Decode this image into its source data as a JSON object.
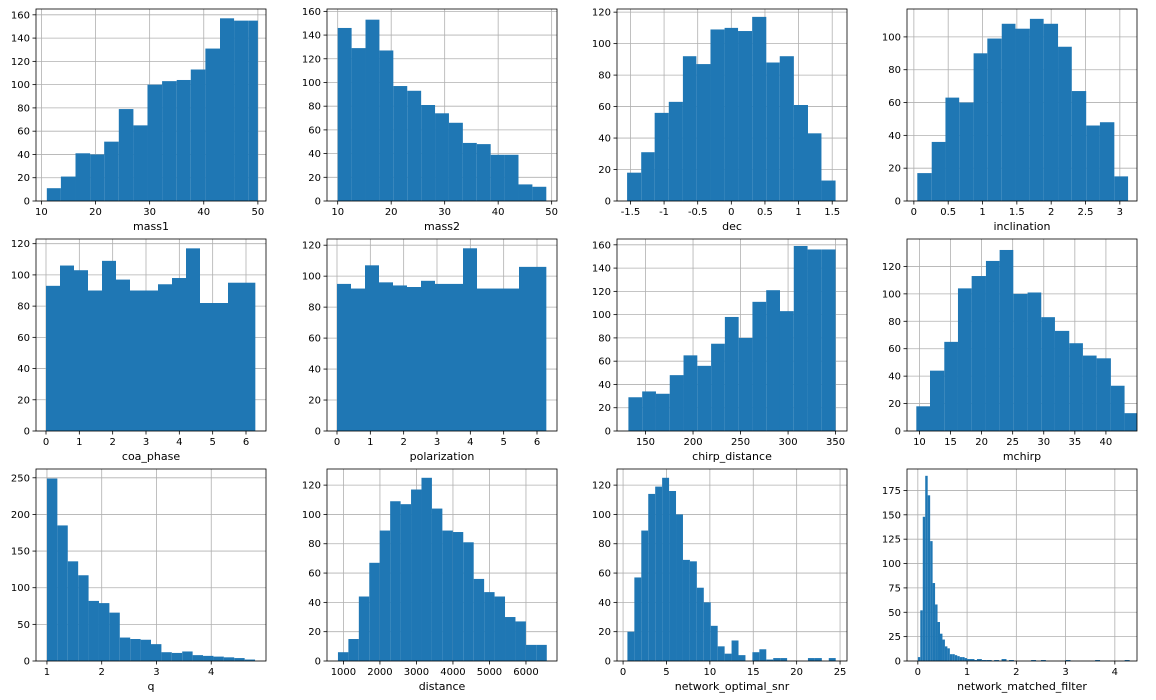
{
  "chart_data": [
    {
      "type": "histogram",
      "xlabel": "mass1",
      "xlim": [
        9,
        51.5
      ],
      "ylim": [
        0,
        165
      ],
      "xticks": [
        10,
        20,
        30,
        40,
        50
      ],
      "yticks": [
        0,
        20,
        40,
        60,
        80,
        100,
        120,
        140,
        160
      ],
      "bins": [
        [
          11.0,
          13.6,
          11
        ],
        [
          13.6,
          16.3,
          21
        ],
        [
          16.3,
          19.0,
          41
        ],
        [
          19.0,
          21.6,
          40
        ],
        [
          21.6,
          24.3,
          51
        ],
        [
          24.3,
          27.0,
          79
        ],
        [
          27.0,
          29.6,
          65
        ],
        [
          29.6,
          32.3,
          100
        ],
        [
          32.3,
          35.0,
          103
        ],
        [
          35.0,
          37.6,
          104
        ],
        [
          37.6,
          40.3,
          113
        ],
        [
          40.3,
          43.0,
          131
        ],
        [
          43.0,
          45.6,
          157
        ],
        [
          45.6,
          48.3,
          155
        ],
        [
          48.3,
          50.0,
          155
        ]
      ]
    },
    {
      "type": "histogram",
      "xlabel": "mass2",
      "xlim": [
        8,
        51
      ],
      "ylim": [
        0,
        162
      ],
      "xticks": [
        10,
        20,
        30,
        40,
        50
      ],
      "yticks": [
        0,
        20,
        40,
        60,
        80,
        100,
        120,
        140,
        160
      ],
      "bins": [
        [
          10.0,
          12.6,
          146
        ],
        [
          12.6,
          15.2,
          129
        ],
        [
          15.2,
          17.8,
          153
        ],
        [
          17.8,
          20.4,
          127
        ],
        [
          20.4,
          23.0,
          97
        ],
        [
          23.0,
          25.6,
          93
        ],
        [
          25.6,
          28.2,
          81
        ],
        [
          28.2,
          30.8,
          74
        ],
        [
          30.8,
          33.4,
          66
        ],
        [
          33.4,
          36.0,
          49
        ],
        [
          36.0,
          38.6,
          48
        ],
        [
          38.6,
          41.2,
          39
        ],
        [
          41.2,
          43.8,
          39
        ],
        [
          43.8,
          46.4,
          14
        ],
        [
          46.4,
          49.0,
          12
        ]
      ]
    },
    {
      "type": "histogram",
      "xlabel": "dec",
      "xlim": [
        -1.7,
        1.72
      ],
      "ylim": [
        0,
        122
      ],
      "xticks": [
        -1.5,
        -1.0,
        -0.5,
        0.0,
        0.5,
        1.0,
        1.5
      ],
      "yticks": [
        0,
        20,
        40,
        60,
        80,
        100,
        120
      ],
      "bins": [
        [
          -1.55,
          -1.34,
          18
        ],
        [
          -1.34,
          -1.14,
          31
        ],
        [
          -1.14,
          -0.93,
          56
        ],
        [
          -0.93,
          -0.72,
          63
        ],
        [
          -0.72,
          -0.52,
          92
        ],
        [
          -0.52,
          -0.31,
          87
        ],
        [
          -0.31,
          -0.1,
          109
        ],
        [
          -0.1,
          0.1,
          110
        ],
        [
          0.1,
          0.31,
          108
        ],
        [
          0.31,
          0.52,
          117
        ],
        [
          0.52,
          0.72,
          88
        ],
        [
          0.72,
          0.93,
          92
        ],
        [
          0.93,
          1.14,
          61
        ],
        [
          1.14,
          1.34,
          43
        ],
        [
          1.34,
          1.55,
          13
        ]
      ]
    },
    {
      "type": "histogram",
      "xlabel": "inclination",
      "xlim": [
        -0.1,
        3.25
      ],
      "ylim": [
        0,
        117
      ],
      "xticks": [
        0.0,
        0.5,
        1.0,
        1.5,
        2.0,
        2.5,
        3.0
      ],
      "yticks": [
        0,
        20,
        40,
        60,
        80,
        100
      ],
      "bins": [
        [
          0.05,
          0.26,
          17
        ],
        [
          0.26,
          0.46,
          36
        ],
        [
          0.46,
          0.66,
          63
        ],
        [
          0.66,
          0.87,
          60
        ],
        [
          0.87,
          1.07,
          90
        ],
        [
          1.07,
          1.28,
          99
        ],
        [
          1.28,
          1.48,
          108
        ],
        [
          1.48,
          1.69,
          105
        ],
        [
          1.69,
          1.89,
          111
        ],
        [
          1.89,
          2.1,
          108
        ],
        [
          2.1,
          2.3,
          94
        ],
        [
          2.3,
          2.51,
          67
        ],
        [
          2.51,
          2.71,
          46
        ],
        [
          2.71,
          2.92,
          48
        ],
        [
          2.92,
          3.12,
          15
        ]
      ]
    },
    {
      "type": "histogram",
      "xlabel": "coa_phase",
      "xlim": [
        -0.3,
        6.6
      ],
      "ylim": [
        0,
        123
      ],
      "xticks": [
        0,
        1,
        2,
        3,
        4,
        5,
        6
      ],
      "yticks": [
        0,
        20,
        40,
        60,
        80,
        100,
        120
      ],
      "bins": [
        [
          0.0,
          0.42,
          93
        ],
        [
          0.42,
          0.84,
          106
        ],
        [
          0.84,
          1.26,
          103
        ],
        [
          1.26,
          1.68,
          90
        ],
        [
          1.68,
          2.1,
          109
        ],
        [
          2.1,
          2.52,
          97
        ],
        [
          2.52,
          2.94,
          90
        ],
        [
          2.94,
          3.36,
          90
        ],
        [
          3.36,
          3.78,
          94
        ],
        [
          3.78,
          4.2,
          98
        ],
        [
          4.2,
          4.62,
          117
        ],
        [
          4.62,
          5.04,
          82
        ],
        [
          5.04,
          5.46,
          82
        ],
        [
          5.46,
          5.88,
          95
        ],
        [
          5.88,
          6.28,
          95
        ]
      ]
    },
    {
      "type": "histogram",
      "xlabel": "polarization",
      "xlim": [
        -0.3,
        6.6
      ],
      "ylim": [
        0,
        124
      ],
      "xticks": [
        0,
        1,
        2,
        3,
        4,
        5,
        6
      ],
      "yticks": [
        0,
        20,
        40,
        60,
        80,
        100,
        120
      ],
      "bins": [
        [
          0.0,
          0.42,
          95
        ],
        [
          0.42,
          0.84,
          92
        ],
        [
          0.84,
          1.26,
          107
        ],
        [
          1.26,
          1.68,
          96
        ],
        [
          1.68,
          2.1,
          94
        ],
        [
          2.1,
          2.52,
          93
        ],
        [
          2.52,
          2.94,
          97
        ],
        [
          2.94,
          3.36,
          95
        ],
        [
          3.36,
          3.78,
          95
        ],
        [
          3.78,
          4.2,
          118
        ],
        [
          4.2,
          4.62,
          92
        ],
        [
          4.62,
          5.04,
          92
        ],
        [
          5.04,
          5.46,
          92
        ],
        [
          5.46,
          5.88,
          106
        ],
        [
          5.88,
          6.28,
          106
        ]
      ]
    },
    {
      "type": "histogram",
      "xlabel": "chirp_distance",
      "xlim": [
        120,
        362
      ],
      "ylim": [
        0,
        165
      ],
      "xticks": [
        150,
        200,
        250,
        300,
        350
      ],
      "yticks": [
        0,
        20,
        40,
        60,
        80,
        100,
        120,
        140,
        160
      ],
      "bins": [
        [
          132,
          146.5,
          29
        ],
        [
          146.5,
          161,
          34
        ],
        [
          161,
          175.5,
          32
        ],
        [
          175.5,
          190,
          48
        ],
        [
          190,
          204.5,
          65
        ],
        [
          204.5,
          219,
          56
        ],
        [
          219,
          233.5,
          75
        ],
        [
          233.5,
          248,
          98
        ],
        [
          248,
          262.5,
          80
        ],
        [
          262.5,
          277,
          111
        ],
        [
          277,
          291.5,
          121
        ],
        [
          291.5,
          306,
          103
        ],
        [
          306,
          320.5,
          159
        ],
        [
          320.5,
          335,
          156
        ],
        [
          335,
          350,
          156
        ]
      ]
    },
    {
      "type": "histogram",
      "xlabel": "mchirp",
      "xlim": [
        8,
        45
      ],
      "ylim": [
        0,
        140
      ],
      "xticks": [
        10,
        15,
        20,
        25,
        30,
        35,
        40
      ],
      "yticks": [
        0,
        20,
        40,
        60,
        80,
        100,
        120
      ],
      "bins": [
        [
          9.5,
          11.7,
          18
        ],
        [
          11.7,
          14.0,
          44
        ],
        [
          14.0,
          16.2,
          65
        ],
        [
          16.2,
          18.4,
          104
        ],
        [
          18.4,
          20.7,
          113
        ],
        [
          20.7,
          22.9,
          124
        ],
        [
          22.9,
          25.1,
          132
        ],
        [
          25.1,
          27.4,
          100
        ],
        [
          27.4,
          29.6,
          101
        ],
        [
          29.6,
          31.8,
          83
        ],
        [
          31.8,
          34.1,
          73
        ],
        [
          34.1,
          36.3,
          64
        ],
        [
          36.3,
          38.5,
          55
        ],
        [
          38.5,
          40.8,
          53
        ],
        [
          40.8,
          43.0,
          33
        ],
        [
          43.0,
          45.0,
          13
        ]
      ]
    },
    {
      "type": "histogram",
      "xlabel": "q",
      "xlim": [
        0.8,
        5.0
      ],
      "ylim": [
        0,
        262
      ],
      "xticks": [
        1,
        2,
        3,
        4
      ],
      "yticks": [
        0,
        50,
        100,
        150,
        200,
        250
      ],
      "bins": [
        [
          1.0,
          1.19,
          249
        ],
        [
          1.19,
          1.38,
          185
        ],
        [
          1.38,
          1.57,
          136
        ],
        [
          1.57,
          1.76,
          117
        ],
        [
          1.76,
          1.95,
          82
        ],
        [
          1.95,
          2.14,
          79
        ],
        [
          2.14,
          2.33,
          66
        ],
        [
          2.33,
          2.52,
          32
        ],
        [
          2.52,
          2.71,
          30
        ],
        [
          2.71,
          2.9,
          29
        ],
        [
          2.9,
          3.09,
          23
        ],
        [
          3.09,
          3.28,
          12
        ],
        [
          3.28,
          3.47,
          11
        ],
        [
          3.47,
          3.66,
          13
        ],
        [
          3.66,
          3.85,
          8
        ],
        [
          3.85,
          4.04,
          7
        ],
        [
          4.04,
          4.23,
          6
        ],
        [
          4.23,
          4.42,
          5
        ],
        [
          4.42,
          4.61,
          4
        ],
        [
          4.61,
          4.8,
          2
        ]
      ]
    },
    {
      "type": "histogram",
      "xlabel": "distance",
      "xlim": [
        550,
        6850
      ],
      "ylim": [
        0,
        131
      ],
      "xticks": [
        1000,
        2000,
        3000,
        4000,
        5000,
        6000
      ],
      "yticks": [
        0,
        20,
        40,
        60,
        80,
        100,
        120
      ],
      "bins": [
        [
          850,
          1136,
          6
        ],
        [
          1136,
          1422,
          15
        ],
        [
          1422,
          1708,
          44
        ],
        [
          1708,
          1994,
          67
        ],
        [
          1994,
          2280,
          89
        ],
        [
          2280,
          2566,
          109
        ],
        [
          2566,
          2852,
          107
        ],
        [
          2852,
          3138,
          117
        ],
        [
          3138,
          3424,
          125
        ],
        [
          3424,
          3710,
          104
        ],
        [
          3710,
          3996,
          89
        ],
        [
          3996,
          4282,
          88
        ],
        [
          4282,
          4568,
          81
        ],
        [
          4568,
          4854,
          56
        ],
        [
          4854,
          5140,
          47
        ],
        [
          5140,
          5426,
          44
        ],
        [
          5426,
          5712,
          30
        ],
        [
          5712,
          5998,
          27
        ],
        [
          5998,
          6284,
          11
        ],
        [
          6284,
          6570,
          11
        ]
      ]
    },
    {
      "type": "histogram",
      "xlabel": "network_optimal_snr",
      "xlim": [
        -0.7,
        25.8
      ],
      "ylim": [
        0,
        131
      ],
      "xticks": [
        0,
        5,
        10,
        15,
        20,
        25
      ],
      "yticks": [
        0,
        20,
        40,
        60,
        80,
        100,
        120
      ],
      "bins": [
        [
          0.5,
          1.3,
          20
        ],
        [
          1.3,
          2.1,
          57
        ],
        [
          2.1,
          2.9,
          89
        ],
        [
          2.9,
          3.7,
          114
        ],
        [
          3.7,
          4.5,
          119
        ],
        [
          4.5,
          5.3,
          125
        ],
        [
          5.3,
          6.1,
          116
        ],
        [
          6.1,
          6.9,
          100
        ],
        [
          6.9,
          7.7,
          69
        ],
        [
          7.7,
          8.5,
          68
        ],
        [
          8.5,
          9.3,
          50
        ],
        [
          9.3,
          10.1,
          40
        ],
        [
          10.1,
          10.9,
          24
        ],
        [
          10.9,
          11.7,
          10
        ],
        [
          11.7,
          12.5,
          5
        ],
        [
          12.5,
          13.3,
          14
        ],
        [
          13.3,
          14.1,
          4
        ],
        [
          14.1,
          14.9,
          0
        ],
        [
          14.9,
          15.7,
          6
        ],
        [
          15.7,
          16.5,
          8
        ],
        [
          16.5,
          17.3,
          1
        ],
        [
          17.3,
          18.1,
          2
        ],
        [
          18.1,
          18.9,
          2
        ],
        [
          18.9,
          19.7,
          0
        ],
        [
          19.7,
          20.5,
          0
        ],
        [
          20.5,
          21.3,
          0
        ],
        [
          21.3,
          22.1,
          2
        ],
        [
          22.1,
          22.9,
          2
        ],
        [
          22.9,
          23.7,
          0
        ],
        [
          23.7,
          24.5,
          2
        ]
      ]
    },
    {
      "type": "histogram",
      "xlabel": "network_matched_filter",
      "xlim": [
        -0.22,
        4.45
      ],
      "ylim": [
        0,
        197
      ],
      "xticks": [
        0,
        1,
        2,
        3,
        4
      ],
      "yticks": [
        0,
        25,
        50,
        75,
        100,
        125,
        150,
        175
      ],
      "bins": [
        [
          0.0,
          0.05,
          4
        ],
        [
          0.05,
          0.1,
          52
        ],
        [
          0.1,
          0.15,
          148
        ],
        [
          0.15,
          0.2,
          190
        ],
        [
          0.2,
          0.25,
          170
        ],
        [
          0.25,
          0.3,
          123
        ],
        [
          0.3,
          0.35,
          80
        ],
        [
          0.35,
          0.4,
          58
        ],
        [
          0.4,
          0.45,
          40
        ],
        [
          0.45,
          0.5,
          28
        ],
        [
          0.5,
          0.55,
          22
        ],
        [
          0.55,
          0.6,
          15
        ],
        [
          0.6,
          0.65,
          13
        ],
        [
          0.65,
          0.7,
          7
        ],
        [
          0.7,
          0.75,
          7
        ],
        [
          0.75,
          0.8,
          6
        ],
        [
          0.8,
          0.85,
          5
        ],
        [
          0.85,
          0.9,
          4
        ],
        [
          0.9,
          0.95,
          4
        ],
        [
          0.95,
          1.0,
          3
        ],
        [
          1.0,
          1.05,
          2
        ],
        [
          1.05,
          1.1,
          2
        ],
        [
          1.1,
          1.15,
          2
        ],
        [
          1.15,
          1.2,
          1
        ],
        [
          1.2,
          1.3,
          2
        ],
        [
          1.3,
          1.4,
          1
        ],
        [
          1.4,
          1.5,
          1
        ],
        [
          1.55,
          1.65,
          1
        ],
        [
          1.7,
          1.8,
          2
        ],
        [
          1.85,
          1.95,
          1
        ],
        [
          2.3,
          2.4,
          1
        ],
        [
          2.5,
          2.6,
          1
        ],
        [
          3.0,
          3.1,
          1
        ],
        [
          3.6,
          3.7,
          1
        ],
        [
          4.2,
          4.3,
          1
        ]
      ]
    }
  ],
  "style": {
    "bar_color": "#1f77b4",
    "grid_color": "#b0b0b0",
    "axis_color": "#000000"
  }
}
